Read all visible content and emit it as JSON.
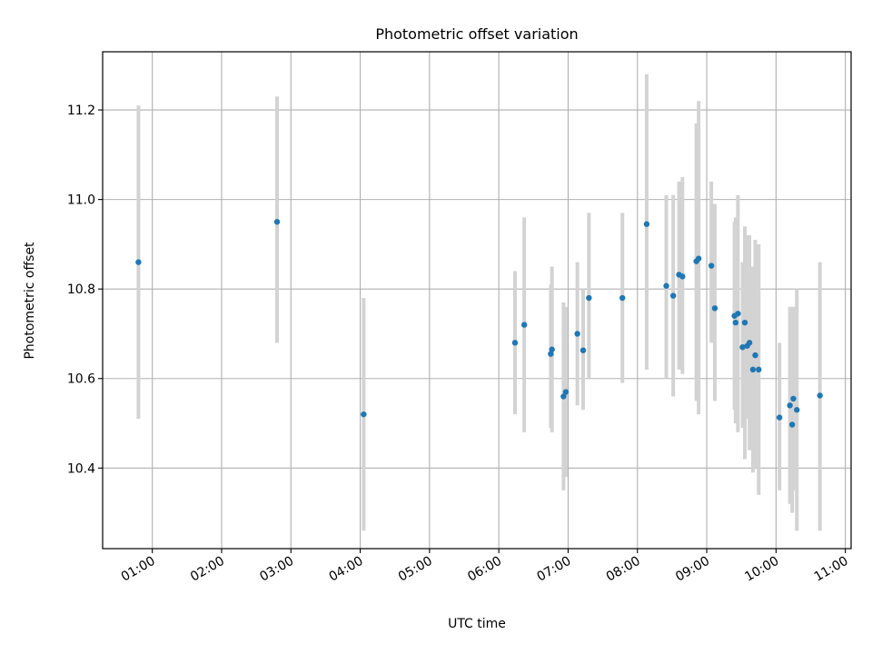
{
  "chart_data": {
    "type": "scatter",
    "title": "Photometric offset variation",
    "xlabel": "UTC time",
    "ylabel": "Photometric offset",
    "xlim": [
      "00:17",
      "11:05"
    ],
    "ylim": [
      10.22,
      11.33
    ],
    "xticks": [
      "01:00",
      "02:00",
      "03:00",
      "04:00",
      "05:00",
      "06:00",
      "07:00",
      "08:00",
      "09:00",
      "10:00",
      "11:00"
    ],
    "yticks": [
      "10.4",
      "10.6",
      "10.8",
      "11.0",
      "11.2"
    ],
    "grid": true,
    "legend": "none",
    "colors": {
      "points": "#1f77b4",
      "errorbars": "#d3d3d3",
      "grid": "#b0b0b0"
    },
    "series": [
      {
        "points": [
          {
            "x": "00:48",
            "y": 10.86,
            "ylow": 10.51,
            "yhigh": 11.21
          },
          {
            "x": "02:48",
            "y": 10.95,
            "ylow": 10.68,
            "yhigh": 11.23
          },
          {
            "x": "04:03",
            "y": 10.52,
            "ylow": 10.26,
            "yhigh": 10.78
          },
          {
            "x": "06:14",
            "y": 10.68,
            "ylow": 10.52,
            "yhigh": 10.84
          },
          {
            "x": "06:22",
            "y": 10.72,
            "ylow": 10.48,
            "yhigh": 10.96
          },
          {
            "x": "06:45",
            "y": 10.655,
            "ylow": 10.49,
            "yhigh": 10.81
          },
          {
            "x": "06:46",
            "y": 10.665,
            "ylow": 10.48,
            "yhigh": 10.85
          },
          {
            "x": "06:56",
            "y": 10.56,
            "ylow": 10.35,
            "yhigh": 10.77
          },
          {
            "x": "06:58",
            "y": 10.57,
            "ylow": 10.38,
            "yhigh": 10.76
          },
          {
            "x": "07:08",
            "y": 10.7,
            "ylow": 10.54,
            "yhigh": 10.86
          },
          {
            "x": "07:13",
            "y": 10.663,
            "ylow": 10.53,
            "yhigh": 10.8
          },
          {
            "x": "07:18",
            "y": 10.78,
            "ylow": 10.6,
            "yhigh": 10.97
          },
          {
            "x": "07:47",
            "y": 10.78,
            "ylow": 10.59,
            "yhigh": 10.97
          },
          {
            "x": "08:08",
            "y": 10.945,
            "ylow": 10.62,
            "yhigh": 11.28
          },
          {
            "x": "08:25",
            "y": 10.807,
            "ylow": 10.6,
            "yhigh": 11.01
          },
          {
            "x": "08:31",
            "y": 10.785,
            "ylow": 10.56,
            "yhigh": 11.01
          },
          {
            "x": "08:36",
            "y": 10.832,
            "ylow": 10.62,
            "yhigh": 11.04
          },
          {
            "x": "08:39",
            "y": 10.828,
            "ylow": 10.61,
            "yhigh": 11.05
          },
          {
            "x": "08:51",
            "y": 10.862,
            "ylow": 10.55,
            "yhigh": 11.17
          },
          {
            "x": "08:53",
            "y": 10.868,
            "ylow": 10.52,
            "yhigh": 11.22
          },
          {
            "x": "09:04",
            "y": 10.852,
            "ylow": 10.68,
            "yhigh": 11.04
          },
          {
            "x": "09:07",
            "y": 10.757,
            "ylow": 10.55,
            "yhigh": 10.99
          },
          {
            "x": "09:24",
            "y": 10.74,
            "ylow": 10.53,
            "yhigh": 10.95
          },
          {
            "x": "09:25",
            "y": 10.725,
            "ylow": 10.5,
            "yhigh": 10.96
          },
          {
            "x": "09:27",
            "y": 10.745,
            "ylow": 10.48,
            "yhigh": 11.01
          },
          {
            "x": "09:31",
            "y": 10.67,
            "ylow": 10.49,
            "yhigh": 10.86
          },
          {
            "x": "09:33",
            "y": 10.725,
            "ylow": 10.42,
            "yhigh": 10.94
          },
          {
            "x": "09:35",
            "y": 10.673,
            "ylow": 10.51,
            "yhigh": 10.92
          },
          {
            "x": "09:37",
            "y": 10.68,
            "ylow": 10.44,
            "yhigh": 10.92
          },
          {
            "x": "09:40",
            "y": 10.62,
            "ylow": 10.39,
            "yhigh": 10.85
          },
          {
            "x": "09:42",
            "y": 10.652,
            "ylow": 10.4,
            "yhigh": 10.91
          },
          {
            "x": "09:45",
            "y": 10.62,
            "ylow": 10.34,
            "yhigh": 10.9
          },
          {
            "x": "10:03",
            "y": 10.513,
            "ylow": 10.35,
            "yhigh": 10.68
          },
          {
            "x": "10:12",
            "y": 10.54,
            "ylow": 10.32,
            "yhigh": 10.76
          },
          {
            "x": "10:14",
            "y": 10.497,
            "ylow": 10.3,
            "yhigh": 10.76
          },
          {
            "x": "10:15",
            "y": 10.555,
            "ylow": 10.35,
            "yhigh": 10.76
          },
          {
            "x": "10:18",
            "y": 10.53,
            "ylow": 10.26,
            "yhigh": 10.8
          },
          {
            "x": "10:38",
            "y": 10.562,
            "ylow": 10.26,
            "yhigh": 10.86
          }
        ]
      }
    ]
  }
}
